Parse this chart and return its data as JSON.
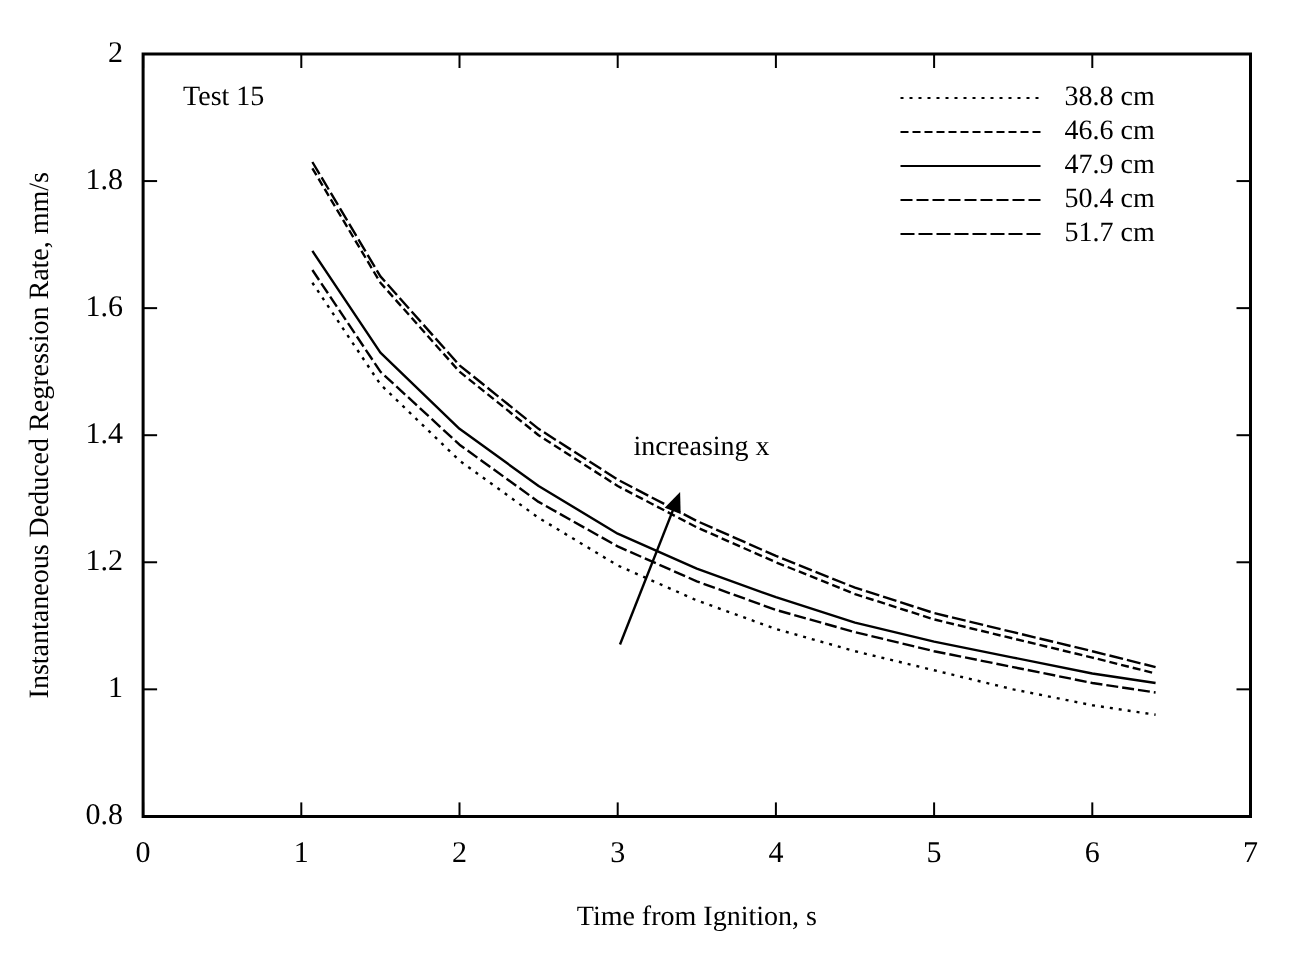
{
  "chart_data": {
    "type": "line",
    "xlabel": "Time from Ignition, s",
    "ylabel": "Instantaneous Deduced Regression Rate, mm/s",
    "annotations": [
      "Test 15",
      "increasing x"
    ],
    "x": [
      1.07,
      1.5,
      2,
      2.5,
      3,
      3.5,
      4,
      4.5,
      5,
      5.5,
      6,
      6.4
    ],
    "series": [
      {
        "name": "38.8 cm",
        "color": "#000000",
        "line_style": "dotted",
        "values": [
          1.64,
          1.48,
          1.36,
          1.27,
          1.195,
          1.14,
          1.095,
          1.06,
          1.03,
          1.0,
          0.975,
          0.96
        ]
      },
      {
        "name": "46.6 cm",
        "color": "#000000",
        "line_style": "dashed",
        "values": [
          1.82,
          1.64,
          1.5,
          1.4,
          1.32,
          1.255,
          1.2,
          1.15,
          1.11,
          1.08,
          1.05,
          1.025
        ]
      },
      {
        "name": "47.9 cm",
        "color": "#000000",
        "line_style": "solid",
        "values": [
          1.69,
          1.53,
          1.41,
          1.32,
          1.245,
          1.19,
          1.145,
          1.105,
          1.075,
          1.05,
          1.025,
          1.01
        ]
      },
      {
        "name": "50.4 cm",
        "color": "#000000",
        "line_style": "dashed",
        "values": [
          1.66,
          1.5,
          1.385,
          1.295,
          1.225,
          1.17,
          1.125,
          1.09,
          1.06,
          1.035,
          1.01,
          0.995
        ]
      },
      {
        "name": "51.7 cm",
        "color": "#000000",
        "line_style": "dashed",
        "values": [
          1.83,
          1.65,
          1.51,
          1.41,
          1.33,
          1.265,
          1.21,
          1.16,
          1.12,
          1.09,
          1.06,
          1.035
        ]
      }
    ],
    "xlim": [
      0,
      7
    ],
    "xticks": [
      0,
      1,
      2,
      3,
      4,
      5,
      6,
      7
    ],
    "ylim": [
      0.8,
      2
    ],
    "yticks": [
      0.8,
      1,
      1.2,
      1.4,
      1.6,
      1.8,
      2
    ],
    "grid": false,
    "legend": "top right",
    "marker": "none"
  }
}
